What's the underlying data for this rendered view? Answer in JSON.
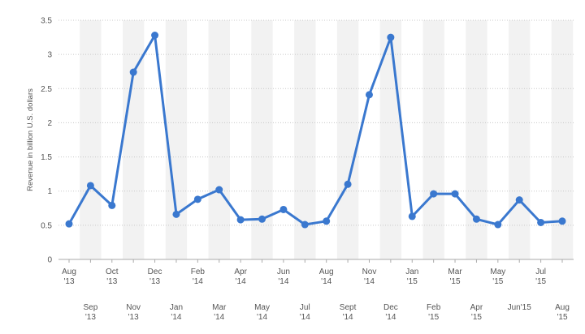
{
  "chart_data": {
    "type": "line",
    "title": "",
    "xlabel": "",
    "ylabel": "Revenue in billion U.S. dollars",
    "ylim": [
      0,
      3.5
    ],
    "yticks": [
      "0",
      "0.5",
      "1",
      "1.5",
      "2",
      "2.5",
      "3",
      "3.5"
    ],
    "grid": true,
    "legend": "none",
    "categories": [
      {
        "l1": "Aug",
        "l2": "'13"
      },
      {
        "l1": "Sep",
        "l2": "'13"
      },
      {
        "l1": "Oct",
        "l2": "'13"
      },
      {
        "l1": "Nov",
        "l2": "'13"
      },
      {
        "l1": "Dec",
        "l2": "'13"
      },
      {
        "l1": "Jan",
        "l2": "'14"
      },
      {
        "l1": "Feb",
        "l2": "'14"
      },
      {
        "l1": "Mar",
        "l2": "'14"
      },
      {
        "l1": "Apr",
        "l2": "'14"
      },
      {
        "l1": "May",
        "l2": "'14"
      },
      {
        "l1": "Jun",
        "l2": "'14"
      },
      {
        "l1": "Jul",
        "l2": "'14"
      },
      {
        "l1": "Aug",
        "l2": "'14"
      },
      {
        "l1": "Sept",
        "l2": "'14"
      },
      {
        "l1": "Nov",
        "l2": "'14"
      },
      {
        "l1": "Dec",
        "l2": "'14"
      },
      {
        "l1": "Jan",
        "l2": "'15"
      },
      {
        "l1": "Feb",
        "l2": "'15"
      },
      {
        "l1": "Mar",
        "l2": "'15"
      },
      {
        "l1": "Apr",
        "l2": "'15"
      },
      {
        "l1": "May",
        "l2": "'15"
      },
      {
        "l1": "Jun'15",
        "l2": ""
      },
      {
        "l1": "Jul",
        "l2": "'15"
      },
      {
        "l1": "Aug",
        "l2": "'15"
      }
    ],
    "series": [
      {
        "values": [
          0.52,
          1.08,
          0.79,
          2.74,
          3.28,
          0.66,
          0.88,
          1.02,
          0.58,
          0.59,
          0.73,
          0.51,
          0.56,
          1.1,
          2.41,
          3.25,
          0.63,
          0.96,
          0.96,
          0.59,
          0.51,
          0.87,
          0.54,
          0.56
        ]
      }
    ],
    "colors": {
      "line": "#3a78cf",
      "band": "#f2f2f2",
      "grid": "#c8c8c8",
      "axis": "#aaaaaa",
      "text": "#555555"
    }
  }
}
